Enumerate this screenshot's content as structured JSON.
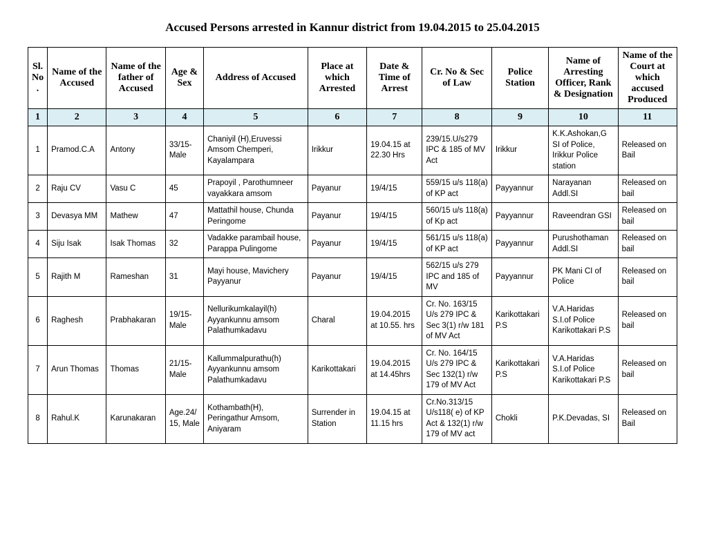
{
  "title": "Accused Persons arrested in   Kannur  district from   19.04.2015 to 25.04.2015",
  "headers": [
    "Sl. No.",
    "Name of the Accused",
    "Name of the father of Accused",
    "Age & Sex",
    "Address of Accused",
    "Place at which Arrested",
    "Date & Time of Arrest",
    "Cr. No & Sec of Law",
    "Police Station",
    "Name of Arresting Officer, Rank & Designation",
    "Name of the Court at which accused Produced"
  ],
  "numrow": [
    "1",
    "2",
    "3",
    "4",
    "5",
    "6",
    "7",
    "8",
    "9",
    "10",
    "11"
  ],
  "rows": [
    {
      "sl": "1",
      "accused": "Pramod.C.A",
      "father": "Antony",
      "age": "33/15- Male",
      "address": "Chaniyil (H),Eruvessi Amsom Chemperi, Kayalampara",
      "place": "Irikkur",
      "datetime": "19.04.15 at 22.30 Hrs",
      "crno": "239/15.U/s279 IPC & 185 of MV Act",
      "station": "Irikkur",
      "officer": "K.K.Ashokan,G SI of Police, Irikkur Police station",
      "court": "Released on Bail"
    },
    {
      "sl": "2",
      "accused": "Raju CV",
      "father": "Vasu C",
      "age": "45",
      "address": "Prapoyil , Parothumneer vayakkara amsom",
      "place": "Payanur",
      "datetime": "19/4/15",
      "crno": "559/15 u/s 118(a) of KP act",
      "station": "Payyannur",
      "officer": "Narayanan Addl.SI",
      "court": "Released on bail"
    },
    {
      "sl": "3",
      "accused": "Devasya MM",
      "father": "Mathew",
      "age": "47",
      "address": "Mattathil house, Chunda Peringome",
      "place": "Payanur",
      "datetime": "19/4/15",
      "crno": "560/15 u/s 118(a) of Kp act",
      "station": "Payyannur",
      "officer": "Raveendran GSI",
      "court": "Released on bail"
    },
    {
      "sl": "4",
      "accused": "Siju Isak",
      "father": "Isak Thomas",
      "age": "32",
      "address": "Vadakke parambail house, Parappa Pulingome",
      "place": "Payanur",
      "datetime": "19/4/15",
      "crno": "561/15 u/s 118(a) of KP act",
      "station": "Payyannur",
      "officer": "Purushothaman Addl.SI",
      "court": "Released on bail"
    },
    {
      "sl": "5",
      "accused": "Rajith M",
      "father": "Rameshan",
      "age": "31",
      "address": "Mayi house, Mavichery Payyanur",
      "place": "Payanur",
      "datetime": "19/4/15",
      "crno": "562/15 u/s 279 IPC and 185 of MV",
      "station": "Payyannur",
      "officer": "PK Mani CI of Police",
      "court": "Released on bail"
    },
    {
      "sl": "6",
      "accused": "Raghesh",
      "father": "Prabhakaran",
      "age": "19/15- Male",
      "address": "Nellurikumkalayil(h) Ayyankunnu amsom Palathumkadavu",
      "place": "Charal",
      "datetime": "19.04.2015 at 10.55. hrs",
      "crno": "Cr. No. 163/15 U/s 279 IPC & Sec 3(1) r/w 181 of MV Act",
      "station": "Karikottakari P.S",
      "officer": "V.A.Haridas S.I.of Police Karikottakari P.S",
      "court": "Released on bail"
    },
    {
      "sl": "7",
      "accused": "Arun Thomas",
      "father": "Thomas",
      "age": "21/15- Male",
      "address": "Kallummalpurathu(h) Ayyankunnu amsom Palathumkadavu",
      "place": "Karikottakari",
      "datetime": "19.04.2015 at 14.45hrs",
      "crno": "Cr. No. 164/15 U/s 279 IPC & Sec 132(1) r/w 179 of MV Act",
      "station": "Karikottakari P.S",
      "officer": "V.A.Haridas S.I.of Police Karikottakari P.S",
      "court": "Released on bail"
    },
    {
      "sl": "8",
      "accused": "Rahul.K",
      "father": "Karunakaran",
      "age": "Age.24/15, Male",
      "address": "Kothambath(H), Peringathur Amsom, Aniyaram",
      "place": "Surrender in Station",
      "datetime": "19.04.15 at 11.15 hrs",
      "crno": "Cr.No.313/15 U/s118( e) of KP Act & 132(1) r/w 179 of MV act",
      "station": "Chokli",
      "officer": "P.K.Devadas, SI",
      "court": "Released on Bail"
    }
  ]
}
